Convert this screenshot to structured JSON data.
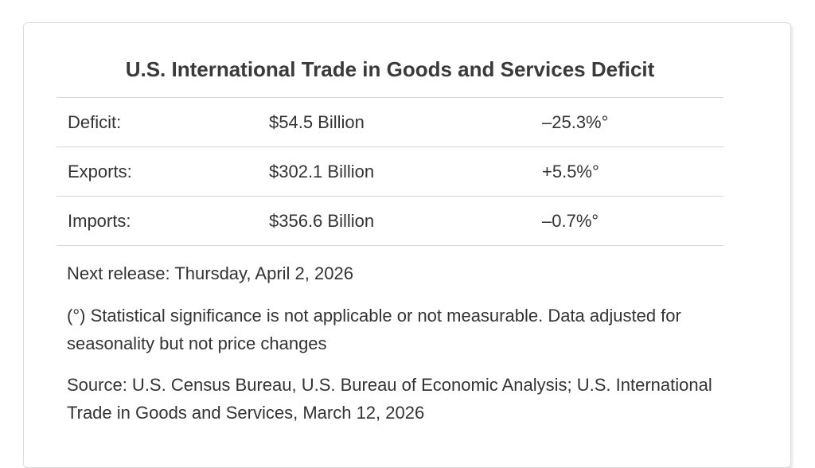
{
  "title": "U.S. International Trade in Goods and Services Deficit",
  "rows": [
    {
      "label": "Deficit:",
      "value": "$54.5 Billion",
      "change": "–25.3%°"
    },
    {
      "label": "Exports:",
      "value": "$302.1 Billion",
      "change": "+5.5%°"
    },
    {
      "label": "Imports:",
      "value": "$356.6 Billion",
      "change": "–0.7%°"
    }
  ],
  "next_release": "Next release: Thursday, April 2, 2026",
  "significance_note": "(°) Statistical significance is not applicable or not measurable. Data adjusted for seasonality but not price changes",
  "source": "Source: U.S. Census Bureau, U.S. Bureau of Economic Analysis; U.S. International Trade in Goods and Services, March 12, 2026"
}
